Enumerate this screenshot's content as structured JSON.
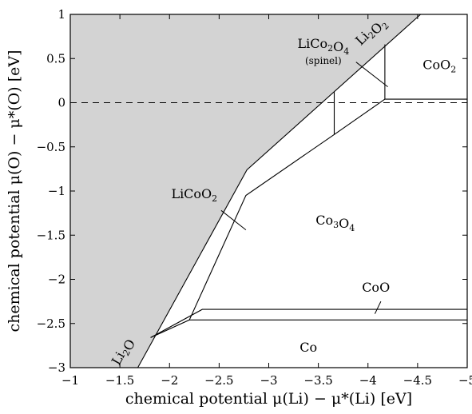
{
  "chart_data": {
    "type": "phase-diagram",
    "xlabel": "chemical potential μ(Li) − μ*(Li) [eV]",
    "ylabel": "chemical potential μ(O) − μ*(O) [eV]",
    "xlim": [
      -1,
      -5
    ],
    "ylim": [
      -3,
      1
    ],
    "xticks": [
      -1,
      -1.5,
      -2,
      -2.5,
      -3,
      -3.5,
      -4,
      -4.5,
      -5
    ],
    "xtick_labels": [
      "−1",
      "−1.5",
      "−2",
      "−2.5",
      "−3",
      "−3.5",
      "−4",
      "−4.5",
      "−5"
    ],
    "yticks": [
      -3,
      -2.5,
      -2,
      -1.5,
      -1,
      -0.5,
      0,
      0.5,
      1
    ],
    "ytick_labels": [
      "−3",
      "−2.5",
      "−2",
      "−1.5",
      "−1",
      "−0.5",
      "0",
      "0.5",
      "1"
    ],
    "shaded_region": [
      [
        -1,
        1
      ],
      [
        -1,
        -3
      ],
      [
        -1.68,
        -3
      ],
      [
        -2.78,
        -0.76
      ],
      [
        -4.53,
        1
      ]
    ],
    "boundaries": [
      [
        [
          -1.68,
          -3
        ],
        [
          -2.78,
          -0.76
        ],
        [
          -4.53,
          1
        ]
      ],
      [
        [
          -1.81,
          -2.66
        ],
        [
          -2.2,
          -2.46
        ],
        [
          -2.77,
          -1.05
        ],
        [
          -3.66,
          -0.36
        ],
        [
          -4.17,
          0.04
        ],
        [
          -5,
          0.04
        ]
      ],
      [
        [
          -3.66,
          -0.36
        ],
        [
          -3.66,
          0.12
        ]
      ],
      [
        [
          -4.17,
          0.04
        ],
        [
          -4.17,
          0.66
        ]
      ],
      [
        [
          -1.81,
          -2.66
        ],
        [
          -2.33,
          -2.34
        ],
        [
          -5,
          -2.34
        ]
      ],
      [
        [
          -2.2,
          -2.46
        ],
        [
          -5,
          -2.46
        ]
      ]
    ],
    "reference_line": {
      "y": 0,
      "style": "dashed"
    },
    "region_labels": [
      {
        "text": "Co",
        "x": -3.4,
        "y": -2.82
      },
      {
        "text": "CoO",
        "x": -4.08,
        "y": -2.14
      },
      {
        "text": "Co3O4",
        "x": -3.67,
        "y": -1.38
      },
      {
        "text": "CoO2",
        "x": -4.72,
        "y": 0.38
      },
      {
        "text": "LiCoO2",
        "x": -2.25,
        "y": -1.08
      },
      {
        "text": "LiCo2O4",
        "x": -3.55,
        "y": 0.62
      },
      {
        "text": "(spinel)",
        "x": -3.55,
        "y": 0.44
      },
      {
        "text": "Li2O2",
        "x": -4.05,
        "y": 0.78
      },
      {
        "text": "Li2O",
        "x": -1.56,
        "y": -2.84
      }
    ],
    "leader_lines": [
      [
        [
          -2.52,
          -1.22
        ],
        [
          -2.77,
          -1.44
        ]
      ],
      [
        [
          -3.88,
          0.46
        ],
        [
          -4.2,
          0.18
        ]
      ],
      [
        [
          -4.13,
          -2.25
        ],
        [
          -4.07,
          -2.39
        ]
      ]
    ]
  }
}
